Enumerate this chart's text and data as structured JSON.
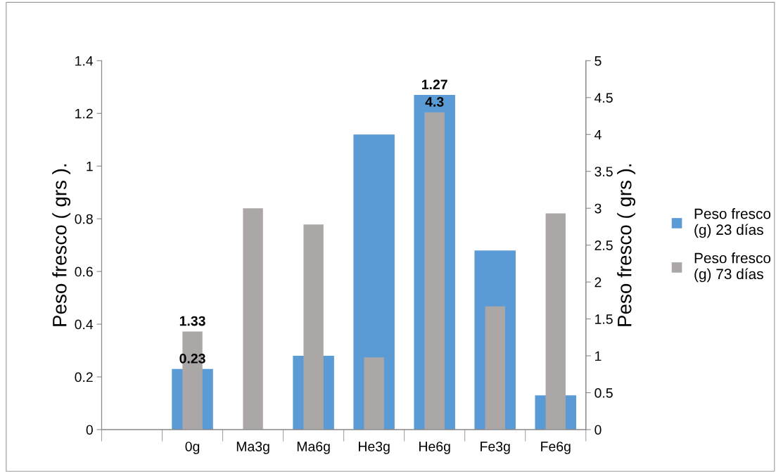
{
  "chart_data": {
    "type": "bar",
    "ylabel": "Peso fresco ( grs ).",
    "y2label": "Peso fresco ( grs ).",
    "categories": [
      null,
      "0g",
      "Ma3g",
      "Ma6g",
      "He3g",
      "He6g",
      "Fe3g",
      "Fe6g"
    ],
    "series": [
      {
        "name": "Peso fresco (g) 23 días",
        "color": "#5b9bd5",
        "values": [
          null,
          0.23,
          null,
          0.28,
          1.12,
          1.27,
          0.68,
          0.13
        ],
        "value_labels": [
          null,
          "0.23",
          null,
          null,
          null,
          "1.27",
          null,
          null
        ]
      },
      {
        "name": "Peso fresco (g) 73 días",
        "color": "#aba7a6",
        "axis": "y2",
        "values": [
          null,
          1.33,
          3.0,
          2.78,
          0.98,
          4.3,
          1.67,
          2.93
        ],
        "value_labels": [
          null,
          "1.33",
          null,
          null,
          null,
          "4.3",
          null,
          null
        ]
      }
    ],
    "ylim": [
      0,
      1.4
    ],
    "yticks": [
      0,
      0.2,
      0.4,
      0.6,
      0.8,
      1,
      1.2,
      1.4
    ],
    "y2lim": [
      0,
      5
    ],
    "y2ticks": [
      0,
      0.5,
      1,
      1.5,
      2,
      2.5,
      3,
      3.5,
      4,
      4.5,
      5
    ],
    "legend": "right"
  }
}
